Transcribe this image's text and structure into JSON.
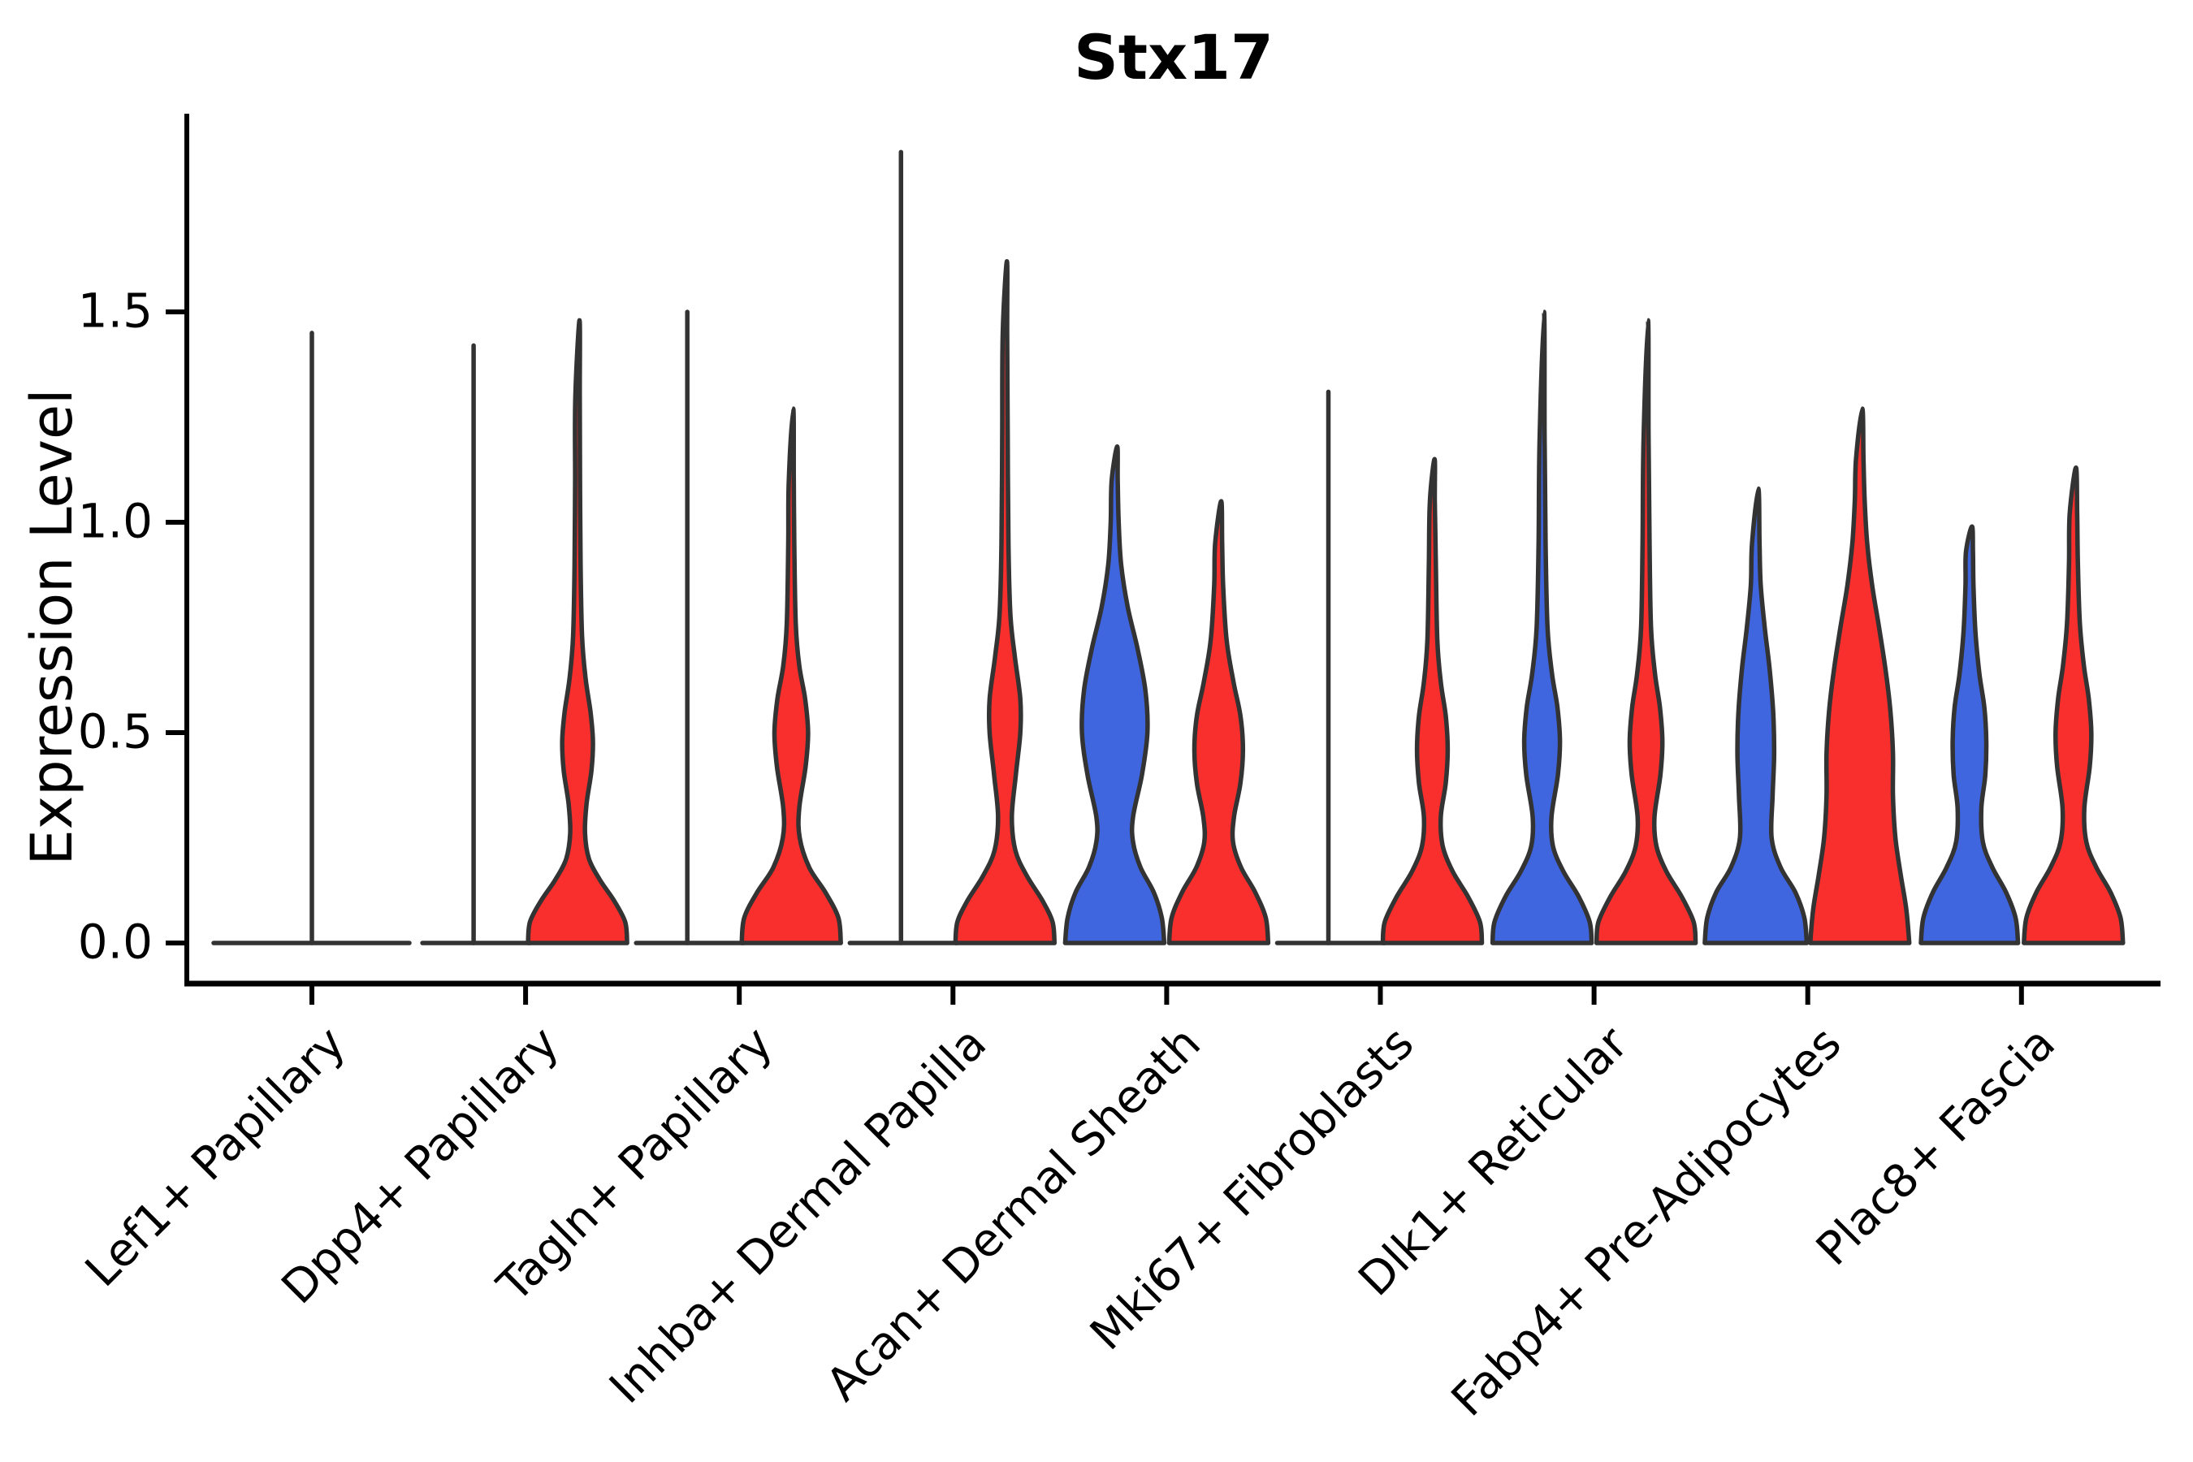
{
  "chart_data": {
    "type": "violin",
    "title": "Stx17",
    "ylabel": "Expression Level",
    "xlabel": "",
    "ylim": [
      -0.09,
      1.97
    ],
    "yticks": [
      0,
      0.5,
      1.0,
      1.5
    ],
    "ytick_labels": [
      "0.0",
      "0.5",
      "1.0",
      "1.5"
    ],
    "grid": false,
    "legend": "none",
    "categories": [
      "Lef1+ Papillary",
      "Dpp4+ Papillary",
      "Tagln+ Papillary",
      "Inhba+ Dermal Papilla",
      "Acan+ Dermal Sheath",
      "Mki67+ Fibroblasts",
      "Dlk1+ Reticular",
      "Fabp4+ Pre-Adipocytes",
      "Plac8+ Fascia"
    ],
    "colors": {
      "blue": "#3F66DF",
      "red": "#F82F2D",
      "edge": "#333333",
      "axis": "#000000"
    },
    "violins": [
      {
        "category": 0,
        "side": "full",
        "color": "blue",
        "shape": "flat",
        "max_expression": 1.45
      },
      {
        "category": 1,
        "side": "left",
        "color": "blue",
        "shape": "flat",
        "max_expression": 1.42
      },
      {
        "category": 1,
        "side": "right",
        "color": "red",
        "shape": "kde",
        "max_expression": 1.48,
        "profile": [
          [
            0,
            1.0
          ],
          [
            0.05,
            0.96
          ],
          [
            0.1,
            0.74
          ],
          [
            0.15,
            0.45
          ],
          [
            0.2,
            0.23
          ],
          [
            0.26,
            0.15
          ],
          [
            0.33,
            0.18
          ],
          [
            0.41,
            0.28
          ],
          [
            0.48,
            0.31
          ],
          [
            0.55,
            0.26
          ],
          [
            0.63,
            0.16
          ],
          [
            0.73,
            0.09
          ],
          [
            0.9,
            0.06
          ],
          [
            1.1,
            0.05
          ],
          [
            1.3,
            0.045
          ],
          [
            1.48,
            0.04
          ]
        ]
      },
      {
        "category": 2,
        "side": "left",
        "color": "blue",
        "shape": "flat",
        "max_expression": 1.5
      },
      {
        "category": 2,
        "side": "right",
        "color": "red",
        "shape": "kde",
        "max_expression": 1.27,
        "profile": [
          [
            0,
            1.0
          ],
          [
            0.06,
            0.95
          ],
          [
            0.12,
            0.69
          ],
          [
            0.18,
            0.36
          ],
          [
            0.25,
            0.17
          ],
          [
            0.32,
            0.16
          ],
          [
            0.42,
            0.29
          ],
          [
            0.5,
            0.34
          ],
          [
            0.58,
            0.28
          ],
          [
            0.66,
            0.16
          ],
          [
            0.76,
            0.09
          ],
          [
            0.95,
            0.06
          ],
          [
            1.1,
            0.05
          ],
          [
            1.27,
            0.04
          ]
        ]
      },
      {
        "category": 3,
        "side": "left",
        "color": "blue",
        "shape": "flat",
        "max_expression": 1.88
      },
      {
        "category": 3,
        "side": "right",
        "color": "red",
        "shape": "kde",
        "max_expression": 1.62,
        "profile": [
          [
            0,
            1.0
          ],
          [
            0.05,
            0.96
          ],
          [
            0.1,
            0.76
          ],
          [
            0.16,
            0.44
          ],
          [
            0.22,
            0.21
          ],
          [
            0.3,
            0.14
          ],
          [
            0.4,
            0.22
          ],
          [
            0.5,
            0.31
          ],
          [
            0.58,
            0.31
          ],
          [
            0.68,
            0.2
          ],
          [
            0.78,
            0.11
          ],
          [
            0.95,
            0.07
          ],
          [
            1.2,
            0.055
          ],
          [
            1.45,
            0.045
          ],
          [
            1.62,
            0.04
          ]
        ]
      },
      {
        "category": 4,
        "side": "left",
        "color": "blue",
        "shape": "kde",
        "max_expression": 1.18,
        "profile": [
          [
            0,
            1.0
          ],
          [
            0.06,
            0.95
          ],
          [
            0.12,
            0.79
          ],
          [
            0.18,
            0.52
          ],
          [
            0.24,
            0.37
          ],
          [
            0.3,
            0.37
          ],
          [
            0.4,
            0.55
          ],
          [
            0.5,
            0.66
          ],
          [
            0.6,
            0.62
          ],
          [
            0.7,
            0.46
          ],
          [
            0.8,
            0.26
          ],
          [
            0.9,
            0.13
          ],
          [
            1.0,
            0.08
          ],
          [
            1.1,
            0.06
          ],
          [
            1.18,
            0.05
          ]
        ]
      },
      {
        "category": 4,
        "side": "right",
        "color": "red",
        "shape": "kde",
        "max_expression": 1.05,
        "profile": [
          [
            0,
            1.0
          ],
          [
            0.06,
            0.95
          ],
          [
            0.12,
            0.74
          ],
          [
            0.18,
            0.45
          ],
          [
            0.24,
            0.29
          ],
          [
            0.3,
            0.31
          ],
          [
            0.38,
            0.44
          ],
          [
            0.46,
            0.49
          ],
          [
            0.54,
            0.44
          ],
          [
            0.62,
            0.3
          ],
          [
            0.72,
            0.16
          ],
          [
            0.85,
            0.09
          ],
          [
            0.95,
            0.07
          ],
          [
            1.05,
            0.05
          ]
        ]
      },
      {
        "category": 5,
        "side": "left",
        "color": "blue",
        "shape": "flat",
        "max_expression": 1.31
      },
      {
        "category": 5,
        "side": "right",
        "color": "red",
        "shape": "kde",
        "max_expression": 1.15,
        "profile": [
          [
            0,
            1.0
          ],
          [
            0.05,
            0.96
          ],
          [
            0.11,
            0.72
          ],
          [
            0.17,
            0.41
          ],
          [
            0.23,
            0.21
          ],
          [
            0.3,
            0.17
          ],
          [
            0.38,
            0.27
          ],
          [
            0.46,
            0.31
          ],
          [
            0.54,
            0.27
          ],
          [
            0.62,
            0.17
          ],
          [
            0.72,
            0.1
          ],
          [
            0.9,
            0.07
          ],
          [
            1.05,
            0.05
          ],
          [
            1.15,
            0.045
          ]
        ]
      },
      {
        "category": 6,
        "side": "left",
        "color": "blue",
        "shape": "kde",
        "max_expression": 1.5,
        "profile": [
          [
            0,
            1.0
          ],
          [
            0.05,
            0.96
          ],
          [
            0.11,
            0.74
          ],
          [
            0.17,
            0.43
          ],
          [
            0.23,
            0.22
          ],
          [
            0.3,
            0.19
          ],
          [
            0.4,
            0.32
          ],
          [
            0.48,
            0.36
          ],
          [
            0.56,
            0.31
          ],
          [
            0.64,
            0.2
          ],
          [
            0.75,
            0.11
          ],
          [
            0.95,
            0.07
          ],
          [
            1.2,
            0.05
          ],
          [
            1.5,
            0.04
          ]
        ]
      },
      {
        "category": 6,
        "side": "right",
        "color": "red",
        "shape": "kde",
        "max_expression": 1.48,
        "profile": [
          [
            0,
            1.0
          ],
          [
            0.05,
            0.96
          ],
          [
            0.11,
            0.72
          ],
          [
            0.17,
            0.41
          ],
          [
            0.23,
            0.21
          ],
          [
            0.3,
            0.17
          ],
          [
            0.4,
            0.29
          ],
          [
            0.48,
            0.33
          ],
          [
            0.56,
            0.28
          ],
          [
            0.64,
            0.18
          ],
          [
            0.75,
            0.1
          ],
          [
            0.95,
            0.07
          ],
          [
            1.2,
            0.05
          ],
          [
            1.48,
            0.04
          ]
        ]
      },
      {
        "category": 7,
        "side": "left",
        "color": "blue",
        "shape": "kde",
        "max_expression": 1.08,
        "profile": [
          [
            0,
            1.03
          ],
          [
            0.06,
            0.98
          ],
          [
            0.12,
            0.8
          ],
          [
            0.18,
            0.5
          ],
          [
            0.25,
            0.32
          ],
          [
            0.35,
            0.34
          ],
          [
            0.45,
            0.37
          ],
          [
            0.55,
            0.35
          ],
          [
            0.65,
            0.28
          ],
          [
            0.75,
            0.18
          ],
          [
            0.85,
            0.1
          ],
          [
            0.95,
            0.075
          ],
          [
            1.08,
            0.05
          ]
        ]
      },
      {
        "category": 7,
        "side": "right",
        "color": "red",
        "shape": "kde",
        "max_expression": 1.27,
        "profile": [
          [
            0,
            1.0
          ],
          [
            0.08,
            0.94
          ],
          [
            0.16,
            0.83
          ],
          [
            0.25,
            0.72
          ],
          [
            0.35,
            0.67
          ],
          [
            0.45,
            0.67
          ],
          [
            0.55,
            0.62
          ],
          [
            0.65,
            0.52
          ],
          [
            0.75,
            0.39
          ],
          [
            0.85,
            0.25
          ],
          [
            0.95,
            0.15
          ],
          [
            1.05,
            0.1
          ],
          [
            1.15,
            0.075
          ],
          [
            1.27,
            0.05
          ]
        ]
      },
      {
        "category": 8,
        "side": "left",
        "color": "blue",
        "shape": "kde",
        "max_expression": 0.99,
        "profile": [
          [
            0,
            0.98
          ],
          [
            0.06,
            0.93
          ],
          [
            0.12,
            0.74
          ],
          [
            0.18,
            0.46
          ],
          [
            0.24,
            0.27
          ],
          [
            0.32,
            0.24
          ],
          [
            0.4,
            0.32
          ],
          [
            0.48,
            0.34
          ],
          [
            0.56,
            0.3
          ],
          [
            0.64,
            0.2
          ],
          [
            0.74,
            0.12
          ],
          [
            0.85,
            0.08
          ],
          [
            0.93,
            0.07
          ],
          [
            0.99,
            0.05
          ]
        ]
      },
      {
        "category": 8,
        "side": "right",
        "color": "red",
        "shape": "kde",
        "max_expression": 1.13,
        "profile": [
          [
            0,
            1.0
          ],
          [
            0.06,
            0.95
          ],
          [
            0.12,
            0.75
          ],
          [
            0.18,
            0.46
          ],
          [
            0.24,
            0.26
          ],
          [
            0.32,
            0.22
          ],
          [
            0.42,
            0.33
          ],
          [
            0.5,
            0.36
          ],
          [
            0.58,
            0.31
          ],
          [
            0.66,
            0.21
          ],
          [
            0.76,
            0.13
          ],
          [
            0.9,
            0.09
          ],
          [
            1.02,
            0.075
          ],
          [
            1.13,
            0.05
          ]
        ]
      }
    ]
  }
}
